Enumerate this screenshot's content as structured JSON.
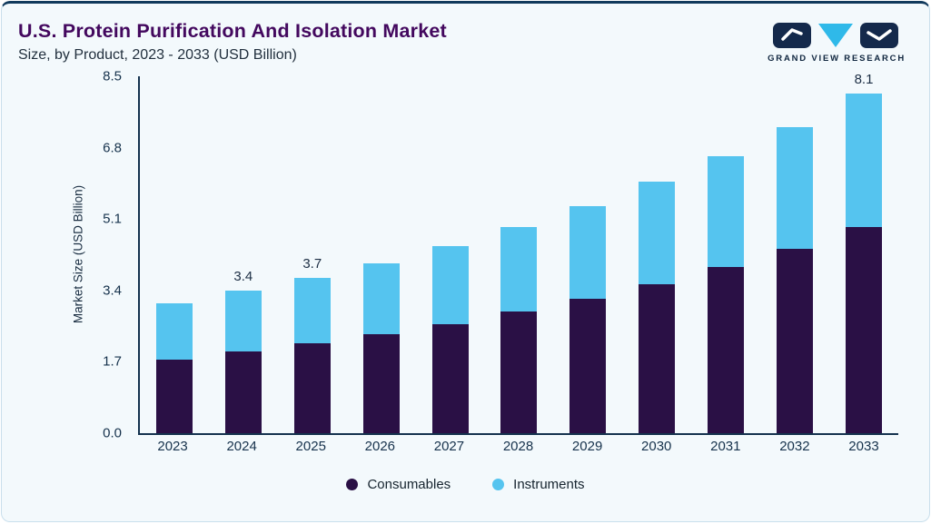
{
  "header": {
    "title": "U.S. Protein Purification And Isolation Market",
    "subtitle": "Size, by Product, 2023 - 2033 (USD Billion)",
    "logo_text": "GRAND VIEW RESEARCH"
  },
  "colors": {
    "background": "#f3f9fc",
    "border": "#c9dfec",
    "top_accent": "#10395c",
    "title": "#43085e",
    "axis": "#14324e",
    "consumables": "#2a1045",
    "instruments": "#55c4ef"
  },
  "chart_data": {
    "type": "bar",
    "stacked": true,
    "title": "U.S. Protein Purification And Isolation Market Size, by Product, 2023 - 2033 (USD Billion)",
    "categories": [
      "2023",
      "2024",
      "2025",
      "2026",
      "2027",
      "2028",
      "2029",
      "2030",
      "2031",
      "2032",
      "2033"
    ],
    "series": [
      {
        "name": "Consumables",
        "color": "#2a1045",
        "values": [
          1.75,
          1.95,
          2.15,
          2.35,
          2.6,
          2.9,
          3.2,
          3.55,
          3.95,
          4.4,
          4.9
        ]
      },
      {
        "name": "Instruments",
        "color": "#55c4ef",
        "values": [
          1.35,
          1.45,
          1.55,
          1.7,
          1.85,
          2.0,
          2.2,
          2.45,
          2.65,
          2.9,
          3.2
        ]
      }
    ],
    "totals": [
      3.1,
      3.4,
      3.7,
      4.05,
      4.45,
      4.9,
      5.4,
      6.0,
      6.6,
      7.3,
      8.1
    ],
    "bar_labels": [
      "",
      "3.4",
      "3.7",
      "",
      "",
      "",
      "",
      "",
      "",
      "",
      "8.1"
    ],
    "ylabel": "Market Size (USD Billion)",
    "yticks": [
      0.0,
      1.7,
      3.4,
      5.1,
      6.8,
      8.5
    ],
    "ytick_labels": [
      "0.0",
      "1.7",
      "3.4",
      "5.1",
      "6.8",
      "8.5"
    ],
    "ylim": [
      0,
      8.5
    ],
    "grid": false,
    "legend_position": "bottom"
  }
}
